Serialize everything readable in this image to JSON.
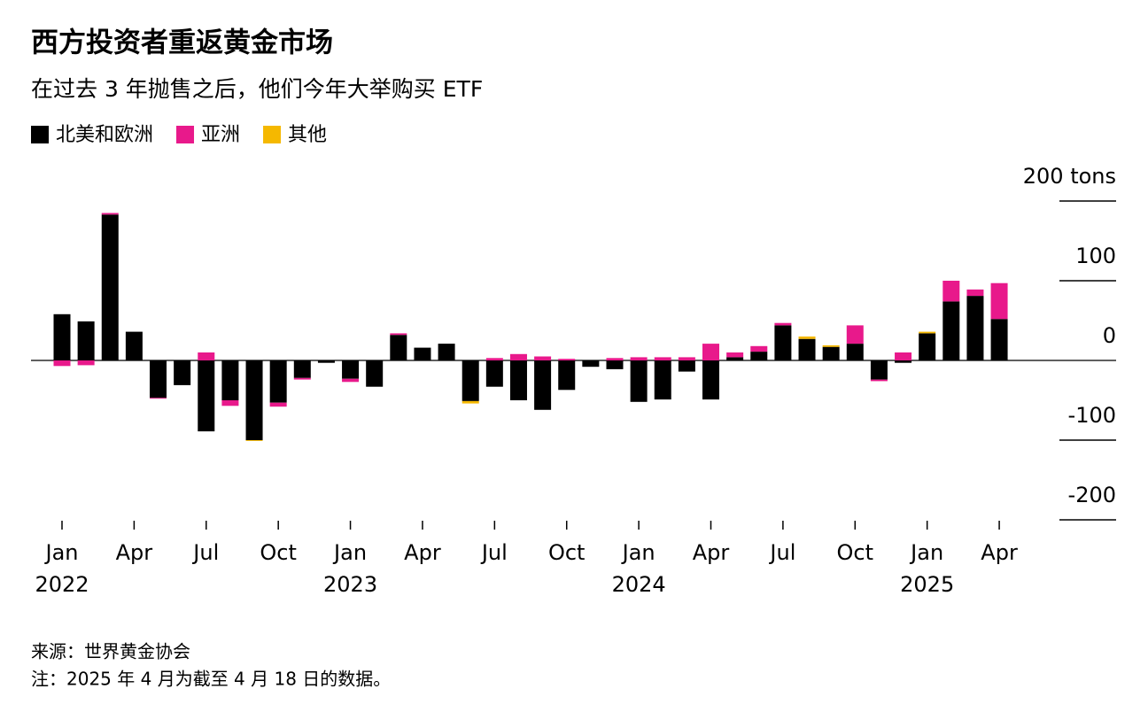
{
  "chart_data": {
    "type": "stacked_bar",
    "title": "西方投资者重返黄金市场",
    "subtitle": "在过去 3 年抛售之后，他们今年大举购买 ETF",
    "categories": [
      "Jan",
      null,
      null,
      "Apr",
      null,
      null,
      "Jul",
      null,
      null,
      "Oct",
      null,
      null,
      "Jan",
      null,
      null,
      "Apr",
      null,
      null,
      "Jul",
      null,
      null,
      "Oct",
      null,
      null,
      "Jan",
      null,
      null,
      "Apr",
      null,
      null,
      "Jul",
      null,
      null,
      "Oct",
      null,
      null,
      "Jan",
      null,
      null,
      "Apr"
    ],
    "year_labels": [
      "2022",
      "2023",
      "2024",
      "2025"
    ],
    "series": [
      {
        "name": "北美和欧洲",
        "color": "#000000",
        "values": [
          58,
          49,
          183,
          36,
          -47,
          -31,
          -89,
          -50,
          -100,
          -53,
          -22,
          -3,
          -23,
          -33,
          32,
          16,
          21,
          -51,
          -33,
          -50,
          -62,
          -37,
          -8,
          -11,
          -52,
          -49,
          -14,
          -49,
          4,
          11,
          44,
          27,
          17,
          21,
          -24,
          -3,
          34,
          74,
          81,
          52
        ]
      },
      {
        "name": "亚洲",
        "color": "#e8198b",
        "values": [
          -7,
          -6,
          2,
          0,
          -1,
          0,
          10,
          -7,
          0,
          -5,
          -2,
          0,
          -4,
          0,
          2,
          0,
          0,
          0,
          3,
          8,
          5,
          2,
          0,
          3,
          4,
          4,
          4,
          21,
          6,
          7,
          3,
          0,
          0,
          23,
          -2,
          10,
          0,
          26,
          8,
          45
        ]
      },
      {
        "name": "其他",
        "color": "#f5b800",
        "values": [
          0,
          0,
          0,
          0,
          0,
          0,
          0,
          0,
          -1,
          0,
          0,
          0,
          0,
          0,
          0,
          0,
          0,
          -3,
          0,
          0,
          0,
          0,
          0,
          0,
          0,
          0,
          0,
          0,
          0,
          0,
          0,
          3,
          2,
          0,
          0,
          0,
          2,
          0,
          0,
          0
        ]
      }
    ],
    "ylim": [
      -220,
      220
    ],
    "yticks": [
      {
        "value": 200,
        "label": "200 tons"
      },
      100,
      0,
      -100,
      -200
    ],
    "source": "来源：世界黄金协会",
    "note": "注：2025 年 4 月为截至 4 月 18 日的数据。"
  }
}
